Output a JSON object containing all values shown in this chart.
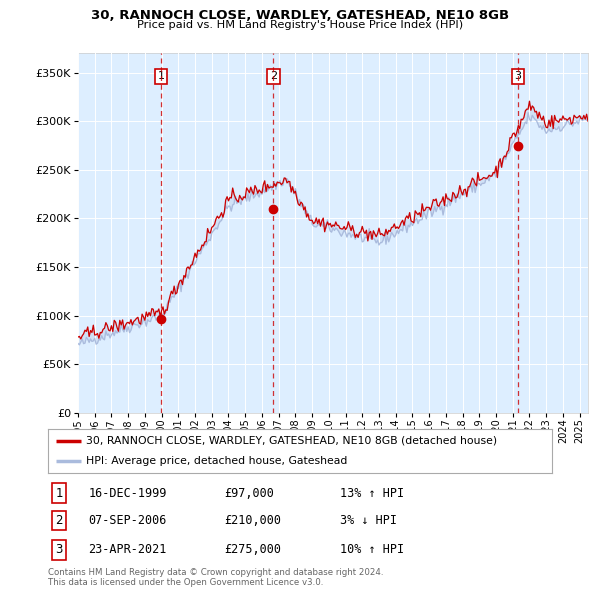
{
  "title": "30, RANNOCH CLOSE, WARDLEY, GATESHEAD, NE10 8GB",
  "subtitle": "Price paid vs. HM Land Registry's House Price Index (HPI)",
  "ylim": [
    0,
    370000
  ],
  "yticks": [
    0,
    50000,
    100000,
    150000,
    200000,
    250000,
    300000,
    350000
  ],
  "background_color": "#ffffff",
  "plot_bg_color": "#ddeeff",
  "grid_color": "#ffffff",
  "sale_color": "#cc0000",
  "hpi_color": "#aabbdd",
  "sale_label": "30, RANNOCH CLOSE, WARDLEY, GATESHEAD, NE10 8GB (detached house)",
  "hpi_label": "HPI: Average price, detached house, Gateshead",
  "transactions": [
    {
      "num": 1,
      "date": "16-DEC-1999",
      "price": 97000,
      "pct": "13% ↑ HPI",
      "year": 1999.96
    },
    {
      "num": 2,
      "date": "07-SEP-2006",
      "price": 210000,
      "pct": "3% ↓ HPI",
      "year": 2006.69
    },
    {
      "num": 3,
      "date": "23-APR-2021",
      "price": 275000,
      "pct": "10% ↑ HPI",
      "year": 2021.31
    }
  ],
  "copyright_text": "Contains HM Land Registry data © Crown copyright and database right 2024.\nThis data is licensed under the Open Government Licence v3.0.",
  "xlim": [
    1995.0,
    2025.5
  ],
  "xticks": [
    1995,
    1996,
    1997,
    1998,
    1999,
    2000,
    2001,
    2002,
    2003,
    2004,
    2005,
    2006,
    2007,
    2008,
    2009,
    2010,
    2011,
    2012,
    2013,
    2014,
    2015,
    2016,
    2017,
    2018,
    2019,
    2020,
    2021,
    2022,
    2023,
    2024,
    2025
  ]
}
